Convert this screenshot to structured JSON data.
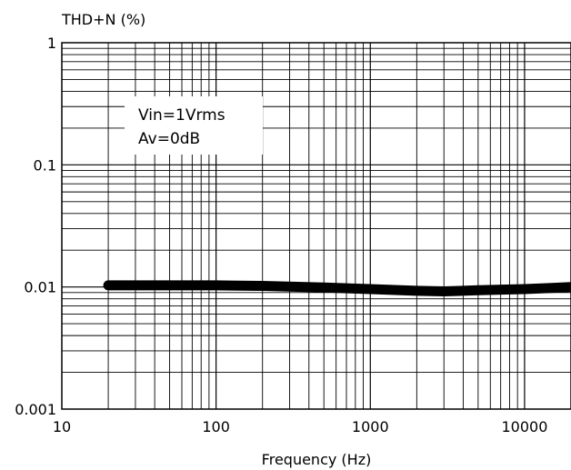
{
  "chart_data": {
    "type": "line",
    "ylabel": "THD+N (%)",
    "xlabel": "Frequency (Hz)",
    "x_scale": "log",
    "y_scale": "log",
    "xlim": [
      10,
      20000
    ],
    "ylim": [
      0.001,
      1
    ],
    "x_ticks": [
      "10",
      "100",
      "1000",
      "10000"
    ],
    "y_ticks": [
      "1",
      "0.1",
      "0.01",
      "0.001"
    ],
    "grid": true,
    "annotation": [
      "Vin=1Vrms",
      "Av=0dB"
    ],
    "series": [
      {
        "x": [
          20,
          50,
          100,
          200,
          500,
          1000,
          2000,
          3000,
          5000,
          10000,
          15000,
          20000
        ],
        "y": [
          0.0103,
          0.0103,
          0.0103,
          0.0102,
          0.0099,
          0.0096,
          0.0093,
          0.0092,
          0.0094,
          0.0096,
          0.0098,
          0.01
        ],
        "color": "#000000"
      }
    ]
  }
}
